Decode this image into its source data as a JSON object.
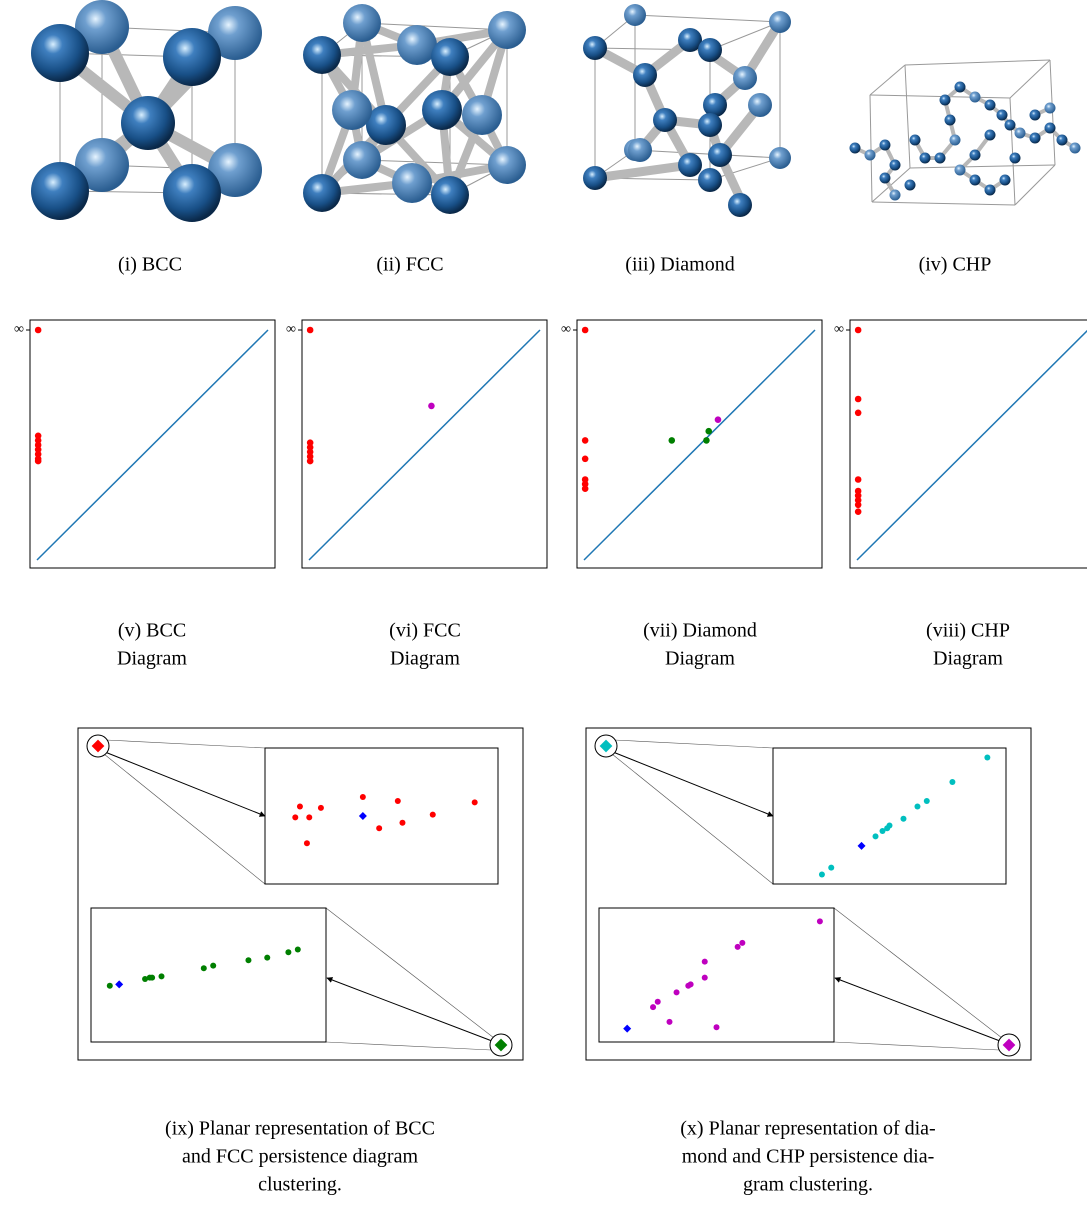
{
  "structures": [
    {
      "caption": "(i) BCC"
    },
    {
      "caption": "(ii) FCC"
    },
    {
      "caption": "(iii) Diamond"
    },
    {
      "caption": "(iv) CHP"
    }
  ],
  "diagrams": [
    {
      "type": "scatter",
      "caption_lines": [
        "(v) BCC",
        "Diagram"
      ],
      "xlim": [
        0,
        1
      ],
      "ylim": [
        0,
        1
      ],
      "yticks": [
        {
          "value": 1,
          "label": "∞"
        }
      ],
      "series": [
        {
          "color": "#ff0000",
          "x": [
            0.005,
            0.005,
            0.005,
            0.005,
            0.005,
            0.005,
            0.005,
            0.005
          ],
          "values": [
            1,
            0.54,
            0.52,
            0.5,
            0.48,
            0.46,
            0.44,
            0.43
          ]
        }
      ]
    },
    {
      "type": "scatter",
      "caption_lines": [
        "(vi) FCC",
        "Diagram"
      ],
      "xlim": [
        0,
        1
      ],
      "ylim": [
        0,
        1
      ],
      "yticks": [
        {
          "value": 1,
          "label": "∞"
        }
      ],
      "series": [
        {
          "color": "#ff0000",
          "x": [
            0.005,
            0.005,
            0.005,
            0.005,
            0.005,
            0.005
          ],
          "values": [
            1,
            0.51,
            0.49,
            0.47,
            0.45,
            0.43
          ]
        },
        {
          "color": "#bf00bf",
          "x": [
            0.53
          ],
          "values": [
            0.67
          ]
        }
      ]
    },
    {
      "type": "scatter",
      "caption_lines": [
        "(vii) Diamond",
        "Diagram"
      ],
      "xlim": [
        0,
        1
      ],
      "ylim": [
        0,
        1
      ],
      "yticks": [
        {
          "value": 1,
          "label": "∞"
        }
      ],
      "series": [
        {
          "color": "#ff0000",
          "x": [
            0.005,
            0.005,
            0.005,
            0.005,
            0.005,
            0.005
          ],
          "values": [
            1,
            0.52,
            0.44,
            0.35,
            0.33,
            0.31
          ]
        },
        {
          "color": "#007f00",
          "x": [
            0.38,
            0.54,
            0.53
          ],
          "values": [
            0.52,
            0.56,
            0.52
          ]
        },
        {
          "color": "#bf00bf",
          "x": [
            0.58
          ],
          "values": [
            0.61
          ]
        }
      ]
    },
    {
      "type": "scatter",
      "caption_lines": [
        "(viii) CHP",
        "Diagram"
      ],
      "xlim": [
        0,
        1
      ],
      "ylim": [
        0,
        1
      ],
      "yticks": [
        {
          "value": 1,
          "label": "∞"
        }
      ],
      "series": [
        {
          "color": "#ff0000",
          "x": [
            0.005,
            0.005,
            0.005,
            0.005,
            0.005,
            0.005,
            0.005,
            0.005,
            0.005
          ],
          "values": [
            1,
            0.7,
            0.64,
            0.35,
            0.3,
            0.28,
            0.26,
            0.24,
            0.21
          ]
        }
      ]
    }
  ],
  "planar": [
    {
      "caption_lines": [
        "(ix) Planar representation of BCC",
        "and FCC persistence diagram",
        "clustering."
      ],
      "insets": [
        {
          "series": [
            {
              "color": "#ff0000",
              "marker": "circle",
              "x": [
                0.15,
                0.13,
                0.19,
                0.24,
                0.18,
                0.42,
                0.49,
                0.57,
                0.59,
                0.72,
                0.9
              ],
              "values": [
                0.57,
                0.49,
                0.49,
                0.56,
                0.3,
                0.64,
                0.41,
                0.61,
                0.45,
                0.51,
                0.6
              ]
            },
            {
              "color": "#0000ff",
              "marker": "diamond",
              "x": [
                0.42
              ],
              "values": [
                0.5
              ]
            }
          ]
        },
        {
          "series": [
            {
              "color": "#007f00",
              "marker": "circle",
              "x": [
                0.08,
                0.23,
                0.25,
                0.26,
                0.3,
                0.48,
                0.52,
                0.67,
                0.75,
                0.84,
                0.88
              ],
              "values": [
                0.42,
                0.47,
                0.48,
                0.48,
                0.49,
                0.55,
                0.57,
                0.61,
                0.63,
                0.67,
                0.69
              ]
            },
            {
              "color": "#0000ff",
              "marker": "diamond",
              "x": [
                0.12
              ],
              "values": [
                0.43
              ]
            }
          ]
        }
      ]
    },
    {
      "caption_lines": [
        "(x) Planar representation of dia-",
        "mond and CHP persistence dia-",
        "gram clustering."
      ],
      "insets": [
        {
          "series": [
            {
              "color": "#00bfbf",
              "marker": "circle",
              "x": [
                0.21,
                0.25,
                0.44,
                0.47,
                0.49,
                0.5,
                0.56,
                0.62,
                0.66,
                0.77,
                0.92
              ],
              "values": [
                0.07,
                0.12,
                0.35,
                0.39,
                0.41,
                0.43,
                0.48,
                0.57,
                0.61,
                0.75,
                0.93
              ]
            },
            {
              "color": "#0000ff",
              "marker": "diamond",
              "x": [
                0.38
              ],
              "values": [
                0.28
              ]
            }
          ]
        },
        {
          "series": [
            {
              "color": "#bf00bf",
              "marker": "circle",
              "x": [
                0.94,
                0.61,
                0.59,
                0.45,
                0.45,
                0.39,
                0.38,
                0.33,
                0.25,
                0.23,
                0.3,
                0.5
              ],
              "values": [
                0.9,
                0.74,
                0.71,
                0.6,
                0.48,
                0.43,
                0.42,
                0.37,
                0.3,
                0.26,
                0.15,
                0.11
              ]
            },
            {
              "color": "#0000ff",
              "marker": "diamond",
              "x": [
                0.12
              ],
              "values": [
                0.1
              ]
            }
          ]
        }
      ]
    }
  ]
}
